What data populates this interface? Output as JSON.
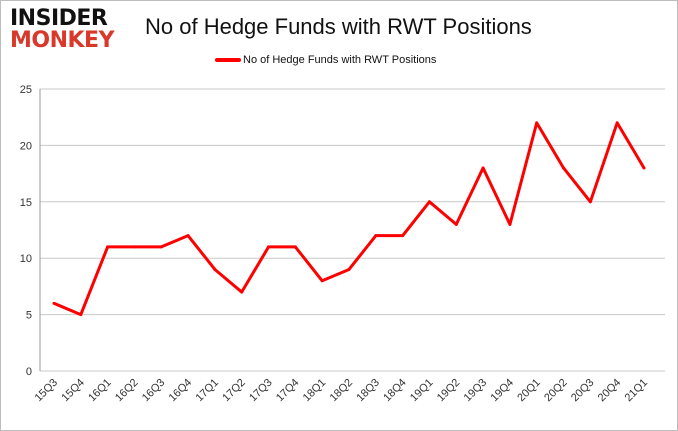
{
  "logo": {
    "line1": "INSIDER",
    "line2": "MONKEY"
  },
  "chart_data": {
    "type": "line",
    "title": "No of Hedge Funds with RWT Positions",
    "categories": [
      "15Q3",
      "15Q4",
      "16Q1",
      "16Q2",
      "16Q3",
      "16Q4",
      "17Q1",
      "17Q2",
      "17Q3",
      "17Q4",
      "18Q1",
      "18Q2",
      "18Q3",
      "18Q4",
      "19Q1",
      "19Q2",
      "19Q3",
      "19Q4",
      "20Q1",
      "20Q2",
      "20Q3",
      "20Q4",
      "21Q1"
    ],
    "series": [
      {
        "name": "No of Hedge Funds with RWT Positions",
        "color": "#ff0000",
        "values": [
          6,
          5,
          11,
          11,
          11,
          12,
          9,
          7,
          11,
          11,
          8,
          9,
          12,
          12,
          15,
          13,
          18,
          13,
          22,
          18,
          15,
          22,
          18
        ]
      }
    ],
    "ylim": [
      0,
      25
    ],
    "yticks": [
      0,
      5,
      10,
      15,
      20,
      25
    ],
    "grid": true,
    "legend": "top-center"
  }
}
